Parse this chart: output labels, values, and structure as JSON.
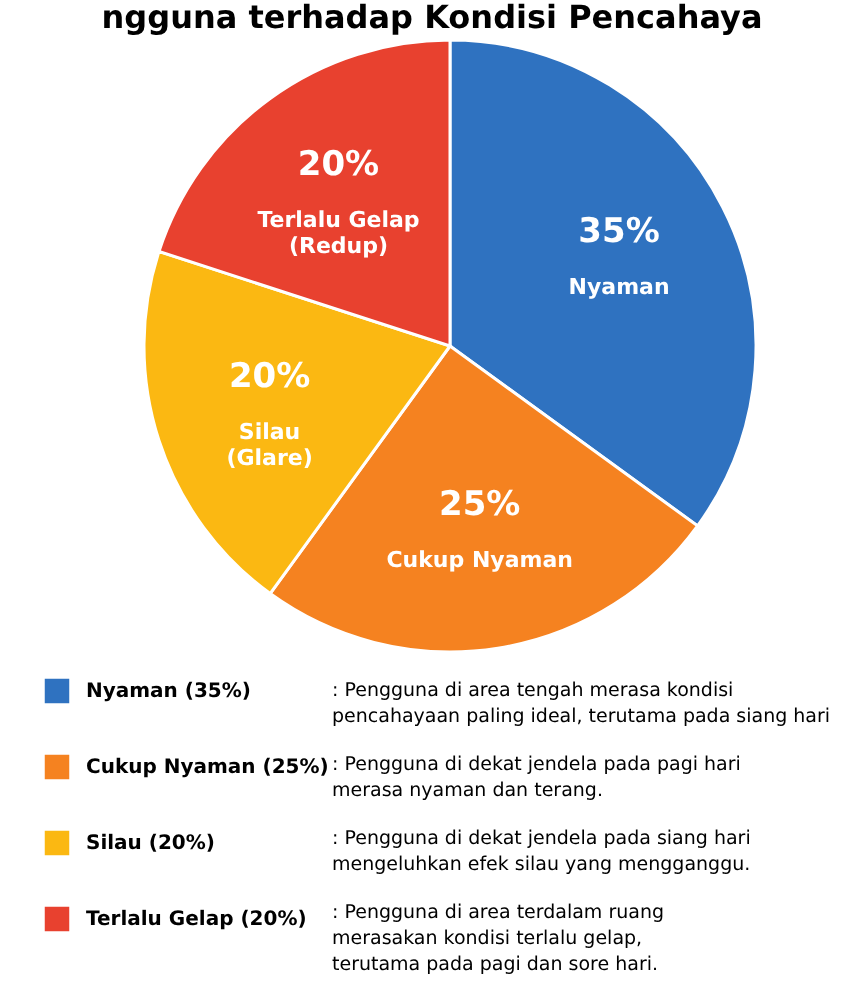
{
  "chart_data": {
    "type": "pie",
    "title": "ngguna terhadap Kondisi Pencahaya",
    "categories": [
      "Nyaman (35%)",
      "Cukup Nyaman (25%)",
      "Silau (20%)",
      "Terlalu Gelap (20%)"
    ],
    "values": [
      35,
      25,
      20,
      20
    ],
    "value_labels": [
      "35%\nNyaman",
      "25%\nCukup Nyaman",
      "20%\nSilau\n(Glare)",
      "20%\nTerlalu Gelap\n(Redup)"
    ],
    "colors": [
      "#2f72c0",
      "#f58220",
      "#fbb812",
      "#e8412f"
    ],
    "legend": "bottom",
    "annotations": [
      ": Pengguna di area tengah merasa kondisi\n  pencahayaan paling ideal, terutama pada siang hari",
      ": Pengguna di dekat jendela pada pagi hari\n  merasa nyaman dan terang.",
      ": Pengguna di dekat jendela pada siang hari\n  mengeluhkan efek silau yang mengganggu.",
      ": Pengguna di area terdalam ruang\n  merasakan kondisi terlalu gelap,\n  terutama pada pagi dan sore hari."
    ]
  }
}
